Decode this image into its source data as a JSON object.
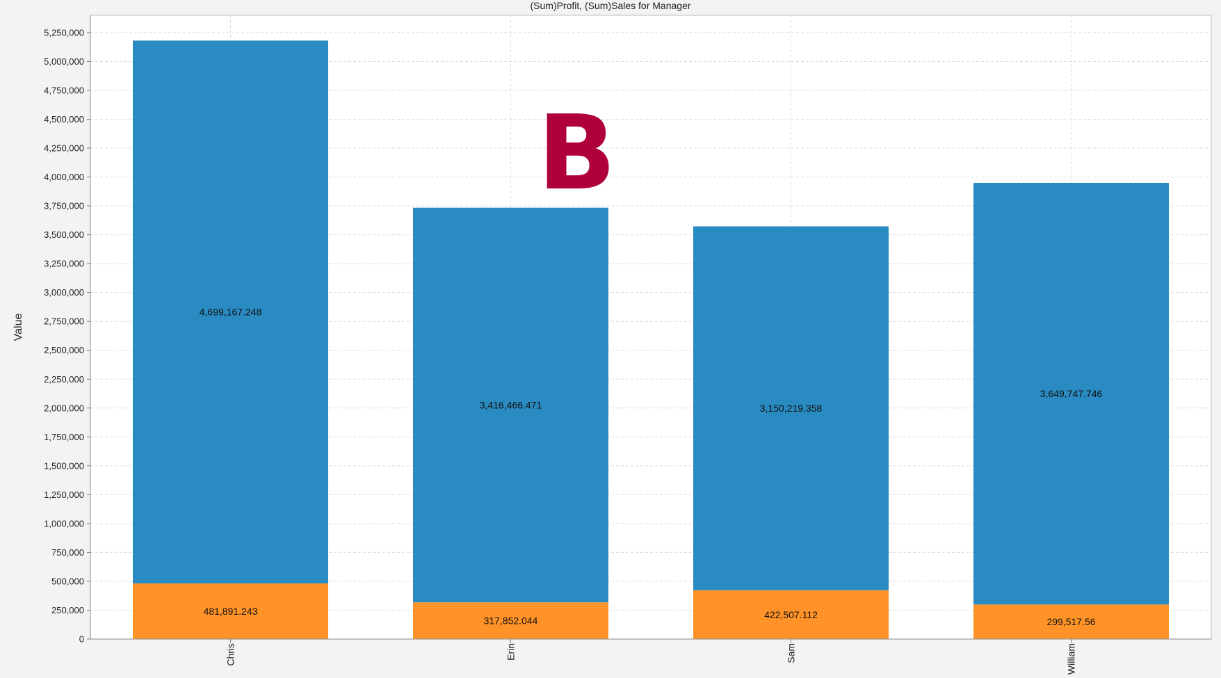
{
  "chart_data": {
    "type": "bar",
    "stacked": true,
    "title": "(Sum)Profit, (Sum)Sales for Manager",
    "xlabel": "",
    "ylabel": "Value",
    "categories": [
      "Chris",
      "Erin",
      "Sam",
      "William"
    ],
    "series": [
      {
        "name": "",
        "color": "#ff9327",
        "values": [
          481891.243,
          317852.044,
          422507.112,
          299517.56
        ],
        "labels": [
          "481,891.243",
          "317,852.044",
          "422,507.112",
          "299,517.56"
        ]
      },
      {
        "name": "",
        "color": "#2a8bc2",
        "values": [
          4699167.248,
          3416466.471,
          3150219.358,
          3649747.746
        ],
        "labels": [
          "4,699,167.248",
          "3,416,466.471",
          "3,150,219.358",
          "3,649,747.746"
        ]
      }
    ],
    "ylim": [
      0,
      5400000
    ],
    "yticks": [
      0,
      250000,
      500000,
      750000,
      1000000,
      1250000,
      1500000,
      1750000,
      2000000,
      2250000,
      2500000,
      2750000,
      3000000,
      3250000,
      3500000,
      3750000,
      4000000,
      4250000,
      4500000,
      4750000,
      5000000,
      5250000
    ],
    "ytick_labels": [
      "0",
      "250,000",
      "500,000",
      "750,000",
      "1,000,000",
      "1,250,000",
      "1,500,000",
      "1,750,000",
      "2,000,000",
      "2,250,000",
      "2,500,000",
      "2,750,000",
      "3,000,000",
      "3,250,000",
      "3,500,000",
      "3,750,000",
      "4,000,000",
      "4,250,000",
      "4,500,000",
      "4,750,000",
      "5,000,000",
      "5,250,000"
    ],
    "grid": true,
    "legend": "none",
    "annotations": [
      {
        "text": "B",
        "color": "#b0003a",
        "near_category": "Erin"
      }
    ]
  }
}
